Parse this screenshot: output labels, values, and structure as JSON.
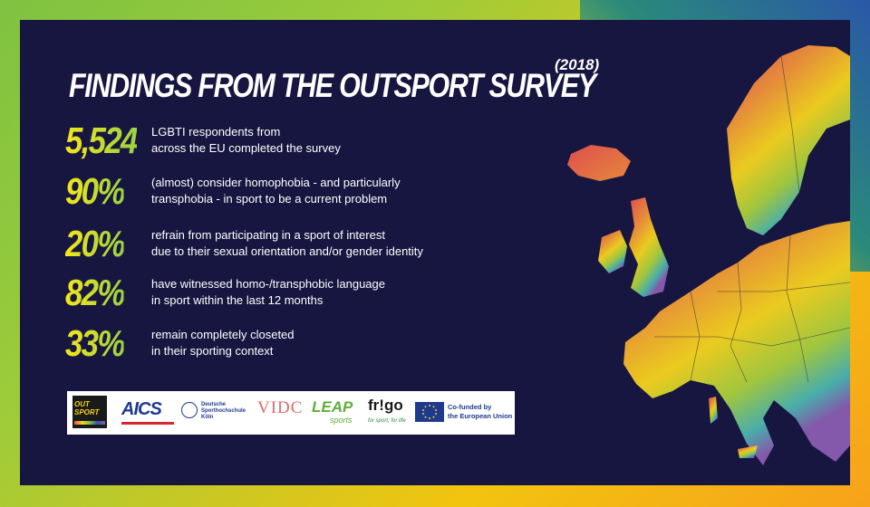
{
  "title": "FINDINGS FROM THE OUTSPORT SURVEY",
  "year": "(2018)",
  "stats": [
    {
      "value": "5,524",
      "line1": "LGBTI respondents from",
      "line2": "across the EU completed the survey"
    },
    {
      "value": "90%",
      "line1": "(almost) consider homophobia - and particularly",
      "line2": "transphobia - in sport to be a current problem"
    },
    {
      "value": "20%",
      "line1": "refrain from participating in a sport of interest",
      "line2": "due to their sexual orientation and/or gender identity"
    },
    {
      "value": "82%",
      "line1": "have witnessed homo-/transphobic language",
      "line2": "in sport within the last 12 months"
    },
    {
      "value": "33%",
      "line1": "remain completely closeted",
      "line2": "in their sporting context"
    }
  ],
  "logos": {
    "outsport": "OUT SPORT",
    "aics": "AICS",
    "dshs_line1": "Deutsche",
    "dshs_line2": "Sporthochschule Köln",
    "vidc": "VIDC",
    "leap_top": "LEAP",
    "leap_bottom": "sports",
    "frigo": "fr!go",
    "frigo_tag": "for sport, for life",
    "eu_line1": "Co-funded by",
    "eu_line2": "the European Union"
  },
  "colors": {
    "panel": "#171640",
    "number_start": "#f4e61a",
    "number_end": "#9bd143",
    "eu_blue": "#1d3a8f"
  }
}
